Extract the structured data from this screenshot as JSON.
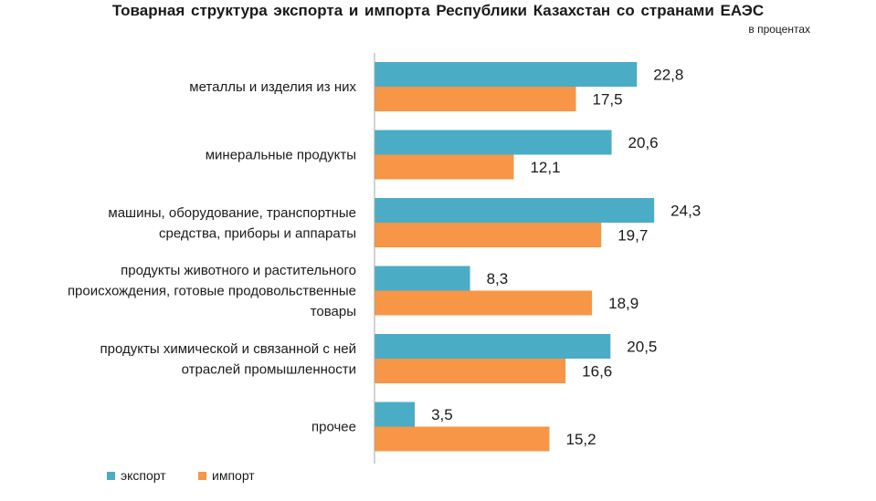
{
  "chart_data": {
    "type": "bar",
    "orientation": "horizontal",
    "title": "Товарная  структура  экспорта  и импорта  Республики  Казахстан  со странами  ЕАЭС",
    "subtitle": "в процентах",
    "categories": [
      [
        "металлы и изделия из них"
      ],
      [
        "минеральные продукты"
      ],
      [
        "машины, оборудование, транспортные",
        "средства, приборы и аппараты"
      ],
      [
        "продукты животного и растительного",
        "происхождения, готовые продовольственные",
        "товары"
      ],
      [
        "продукты химической  и связанной с ней",
        "отраслей промышленности"
      ],
      [
        "прочее"
      ]
    ],
    "series": [
      {
        "name": "экспорт",
        "color": "#4BACC6",
        "values": [
          22.8,
          20.6,
          24.3,
          8.3,
          20.5,
          3.5
        ],
        "labels": [
          "22,8",
          "20,6",
          "24,3",
          "8,3",
          "20,5",
          "3,5"
        ]
      },
      {
        "name": "импорт",
        "color": "#F79646",
        "values": [
          17.5,
          12.1,
          19.7,
          18.9,
          16.6,
          15.2
        ],
        "labels": [
          "17,5",
          "12,1",
          "19,7",
          "18,9",
          "16,6",
          "15,2"
        ]
      }
    ],
    "xlim": [
      0,
      40
    ],
    "legend_position": "bottom-left",
    "grid": false
  }
}
